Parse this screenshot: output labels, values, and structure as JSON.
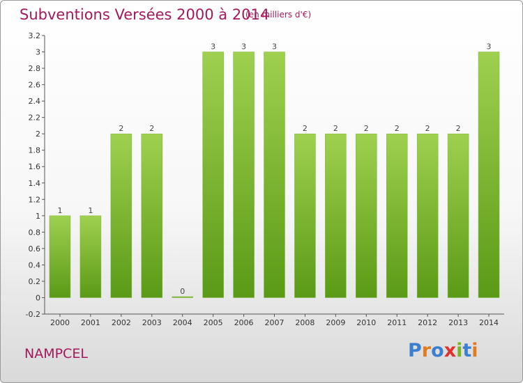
{
  "title": "Subventions Versées 2000 à 2014",
  "subtitle": "(en milliers d'€)",
  "commune": "NAMPCEL",
  "logo": {
    "letters": [
      "P",
      "r",
      "o",
      "x",
      "i",
      "t",
      "i"
    ],
    "colors": [
      "#3b7fd1",
      "#e07b1f",
      "#3b7fd1",
      "#e0312b",
      "#7ab51d",
      "#3b7fd1",
      "#e07b1f"
    ]
  },
  "colors": {
    "bar_top": "#9fd04f",
    "bar_bottom": "#5a9a16",
    "title": "#a3195b"
  },
  "chart_data": {
    "type": "bar",
    "categories": [
      "2000",
      "2001",
      "2002",
      "2003",
      "2004",
      "2005",
      "2006",
      "2007",
      "2008",
      "2009",
      "2010",
      "2011",
      "2012",
      "2013",
      "2014"
    ],
    "values": [
      1,
      1,
      2,
      2,
      0,
      3,
      3,
      3,
      2,
      2,
      2,
      2,
      2,
      2,
      3
    ],
    "data_labels": [
      "1",
      "1",
      "2",
      "2",
      "0",
      "3",
      "3",
      "3",
      "2",
      "2",
      "2",
      "2",
      "2",
      "2",
      "3"
    ],
    "ylim": [
      -0.2,
      3.2
    ],
    "yticks": [
      3.2,
      3,
      2.8,
      2.6,
      2.4,
      2.2,
      2,
      1.8,
      1.6,
      1.4,
      1.2,
      1,
      0.8,
      0.6,
      0.4,
      0.2,
      0,
      -0.2
    ],
    "ytick_labels": [
      "3.2",
      "3",
      "2.8",
      "2.6",
      "2.4",
      "2.2",
      "2",
      "1.8",
      "1.6",
      "1.4",
      "1.2",
      "1",
      "0.8",
      "0.6",
      "0.4",
      "0.2",
      "0",
      "-0.2"
    ],
    "grid": false,
    "xlabel": "",
    "ylabel": ""
  }
}
